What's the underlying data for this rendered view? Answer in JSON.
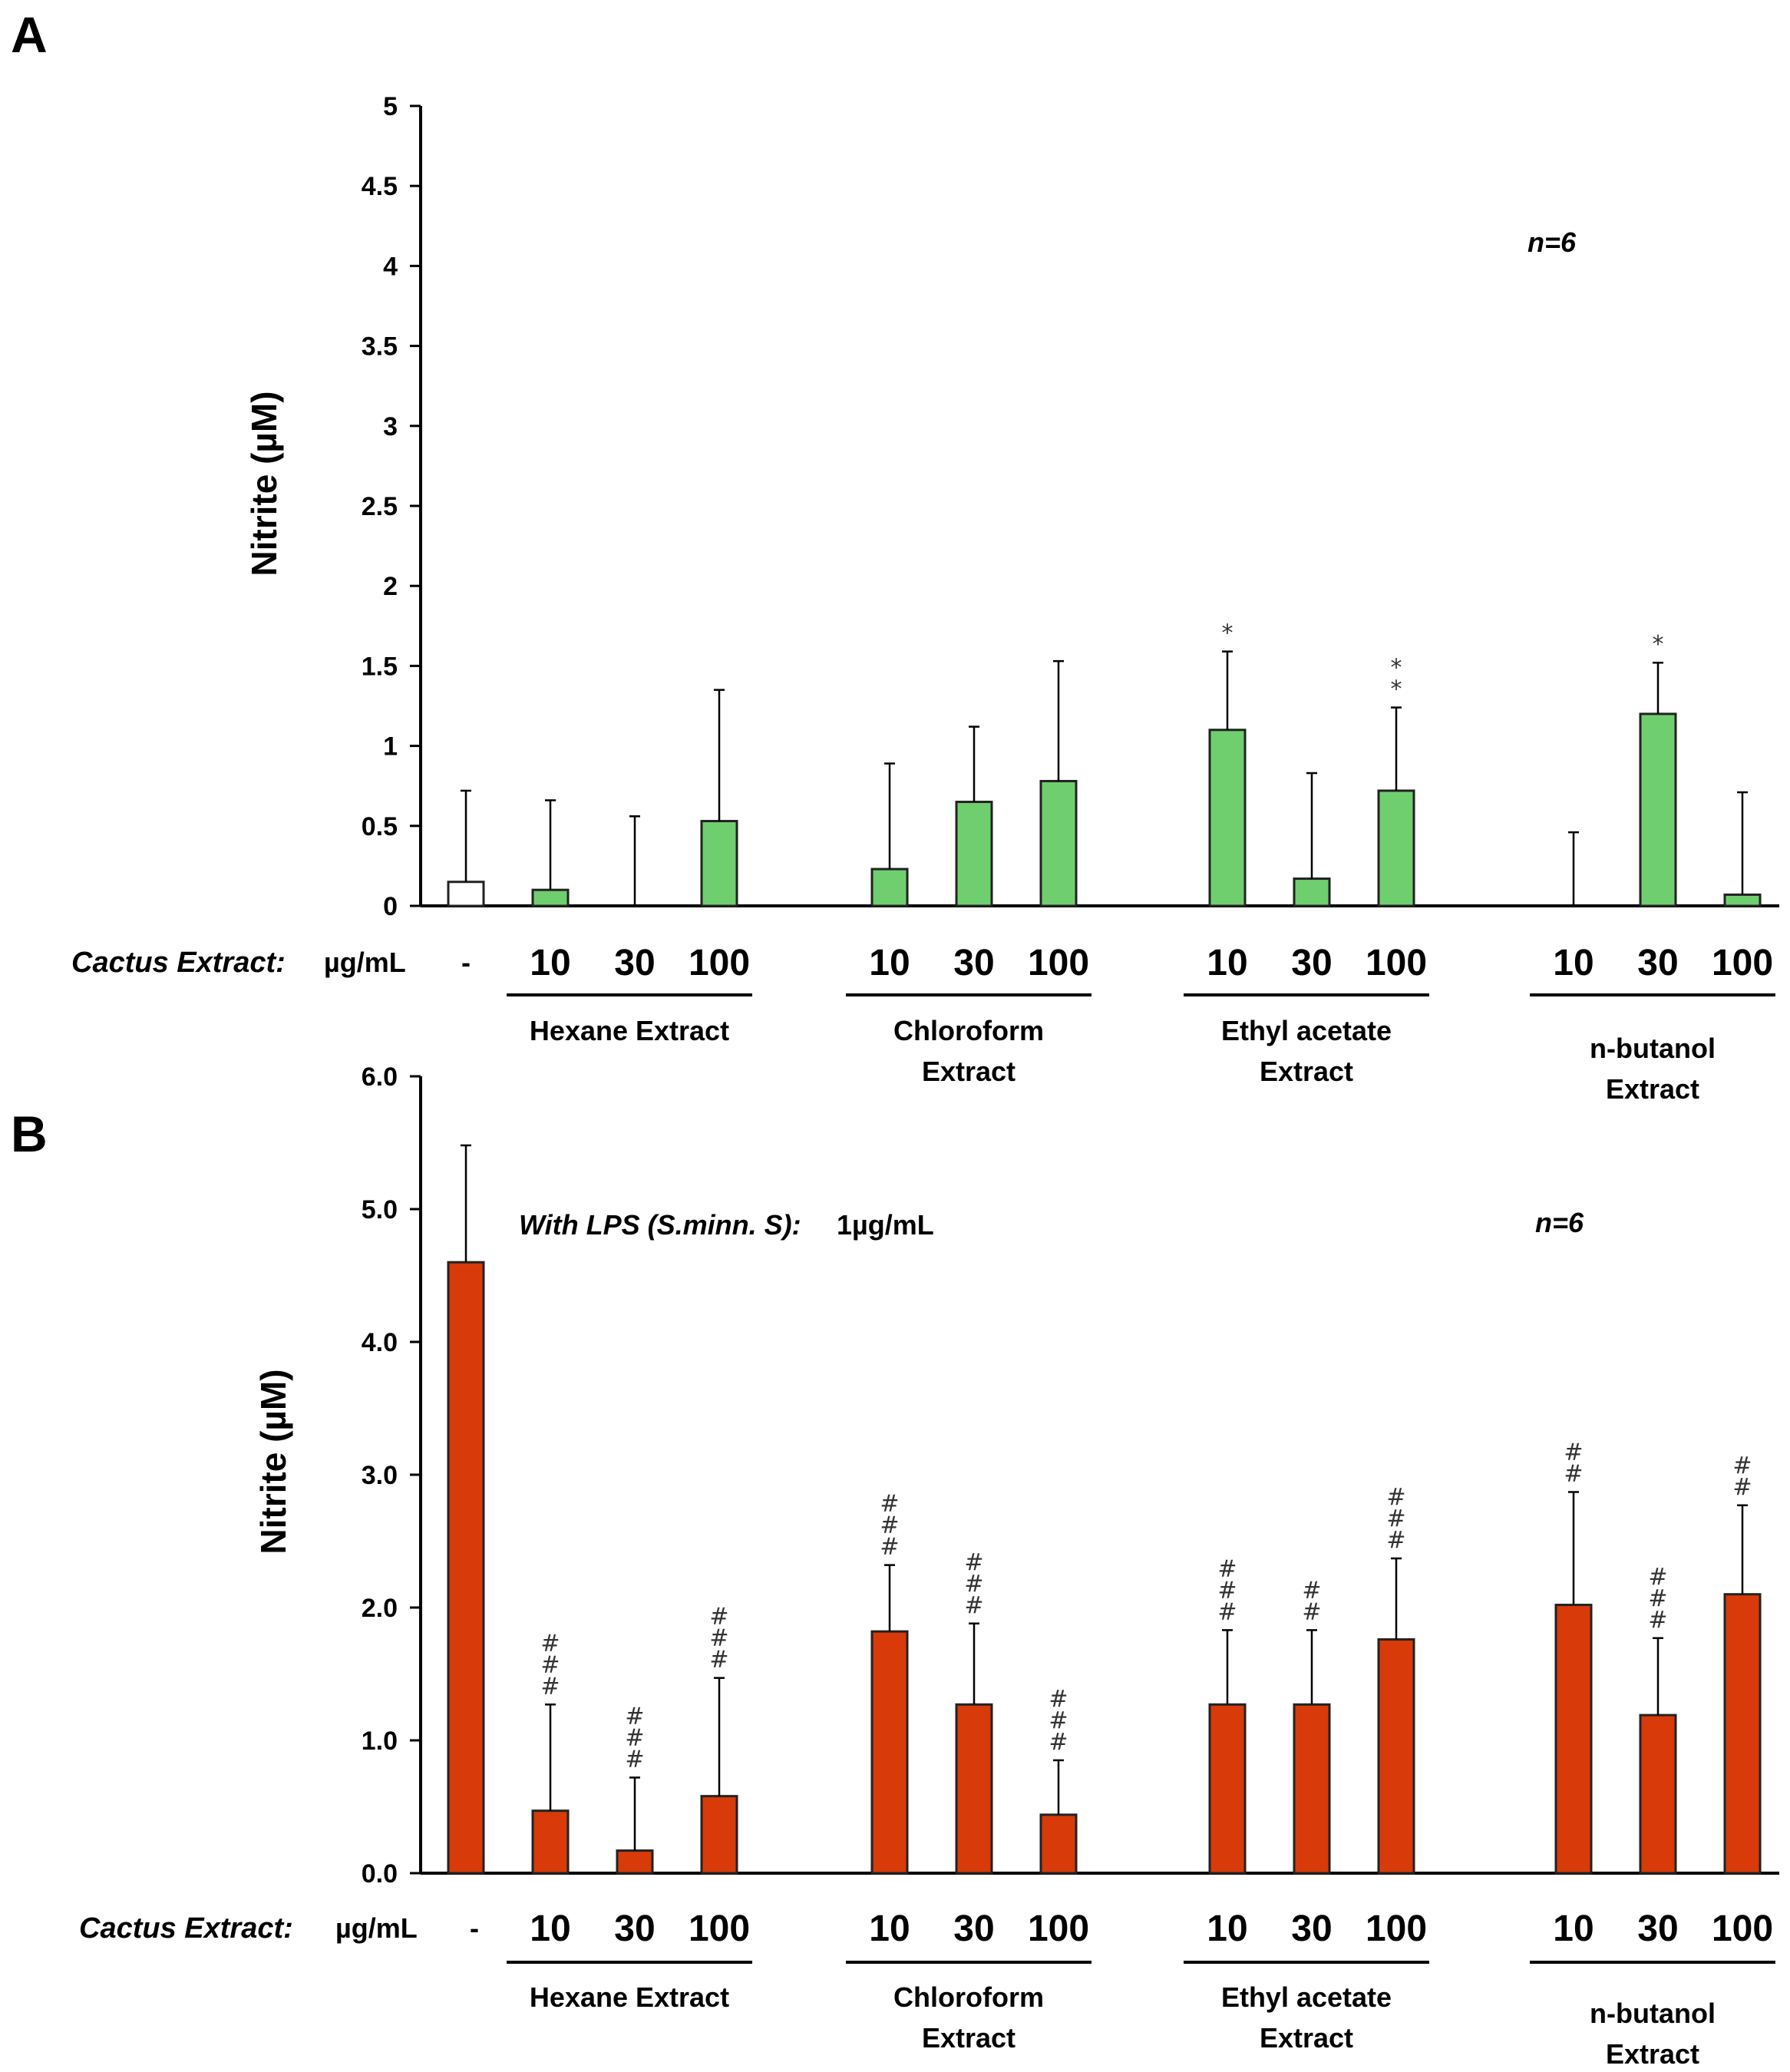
{
  "chart_data": [
    {
      "panel": "A",
      "type": "bar",
      "ylabel": "Nitrite (µM)",
      "ylim": [
        0,
        5
      ],
      "yticks": [
        "0",
        "0.5",
        "1",
        "1.5",
        "2",
        "2.5",
        "3",
        "3.5",
        "4",
        "4.5",
        "5"
      ],
      "n_label": "n=6",
      "row_label": "Cactus Extract:",
      "unit_label": "µg/mL",
      "control_label": "-",
      "bars": [
        {
          "group": "control",
          "dose": "-",
          "value": 0.15,
          "error": 0.57,
          "annotation": "",
          "color": "#ffffff"
        },
        {
          "group": "Hexane Extract",
          "dose": "10",
          "value": 0.1,
          "error": 0.56,
          "annotation": "",
          "color": "#6fcf6f"
        },
        {
          "group": "Hexane Extract",
          "dose": "30",
          "value": 0.0,
          "error": 0.56,
          "annotation": "",
          "color": "#6fcf6f"
        },
        {
          "group": "Hexane Extract",
          "dose": "100",
          "value": 0.53,
          "error": 0.82,
          "annotation": "",
          "color": "#6fcf6f"
        },
        {
          "group": "Chloroform Extract",
          "dose": "10",
          "value": 0.23,
          "error": 0.66,
          "annotation": "",
          "color": "#6fcf6f"
        },
        {
          "group": "Chloroform Extract",
          "dose": "30",
          "value": 0.65,
          "error": 0.47,
          "annotation": "",
          "color": "#6fcf6f"
        },
        {
          "group": "Chloroform Extract",
          "dose": "100",
          "value": 0.78,
          "error": 0.75,
          "annotation": "",
          "color": "#6fcf6f"
        },
        {
          "group": "Ethyl acetate Extract",
          "dose": "10",
          "value": 1.1,
          "error": 0.49,
          "annotation": "*",
          "color": "#6fcf6f"
        },
        {
          "group": "Ethyl acetate Extract",
          "dose": "30",
          "value": 0.17,
          "error": 0.66,
          "annotation": "",
          "color": "#6fcf6f"
        },
        {
          "group": "Ethyl acetate Extract",
          "dose": "100",
          "value": 0.72,
          "error": 0.52,
          "annotation": "**",
          "color": "#6fcf6f"
        },
        {
          "group": "n-butanol Extract",
          "dose": "10",
          "value": 0.0,
          "error": 0.46,
          "annotation": "",
          "color": "#6fcf6f"
        },
        {
          "group": "n-butanol Extract",
          "dose": "30",
          "value": 1.2,
          "error": 0.32,
          "annotation": "*",
          "color": "#6fcf6f"
        },
        {
          "group": "n-butanol Extract",
          "dose": "100",
          "value": 0.07,
          "error": 0.64,
          "annotation": "",
          "color": "#6fcf6f"
        }
      ],
      "groups": [
        {
          "lines": [
            "Hexane Extract"
          ],
          "doses": [
            "10",
            "30",
            "100"
          ]
        },
        {
          "lines": [
            "Chloroform",
            "Extract"
          ],
          "doses": [
            "10",
            "30",
            "100"
          ]
        },
        {
          "lines": [
            "Ethyl acetate",
            "Extract"
          ],
          "doses": [
            "10",
            "30",
            "100"
          ]
        },
        {
          "lines": [
            "n-butanol",
            "Extract"
          ],
          "doses": [
            "10",
            "30",
            "100"
          ]
        }
      ]
    },
    {
      "panel": "B",
      "type": "bar",
      "ylabel": "Nitrite (µM)",
      "ylim": [
        0,
        6
      ],
      "yticks": [
        "0.0",
        "1.0",
        "2.0",
        "3.0",
        "4.0",
        "5.0",
        "6.0"
      ],
      "n_label": "n=6",
      "lps_label": "With LPS (S.minn. S):",
      "lps_value": "1µg/mL",
      "row_label": "Cactus Extract:",
      "unit_label": "µg/mL",
      "control_label": "-",
      "bars": [
        {
          "group": "control",
          "dose": "-",
          "value": 4.6,
          "error": 0.88,
          "annotation": "",
          "color": "#d83a0a"
        },
        {
          "group": "Hexane Extract",
          "dose": "10",
          "value": 0.47,
          "error": 0.8,
          "annotation": "###",
          "color": "#d83a0a"
        },
        {
          "group": "Hexane Extract",
          "dose": "30",
          "value": 0.17,
          "error": 0.55,
          "annotation": "###",
          "color": "#d83a0a"
        },
        {
          "group": "Hexane Extract",
          "dose": "100",
          "value": 0.58,
          "error": 0.89,
          "annotation": "###",
          "color": "#d83a0a"
        },
        {
          "group": "Chloroform Extract",
          "dose": "10",
          "value": 1.82,
          "error": 0.5,
          "annotation": "###",
          "color": "#d83a0a"
        },
        {
          "group": "Chloroform Extract",
          "dose": "30",
          "value": 1.27,
          "error": 0.61,
          "annotation": "###",
          "color": "#d83a0a"
        },
        {
          "group": "Chloroform Extract",
          "dose": "100",
          "value": 0.44,
          "error": 0.41,
          "annotation": "###",
          "color": "#d83a0a"
        },
        {
          "group": "Ethyl acetate Extract",
          "dose": "10",
          "value": 1.27,
          "error": 0.56,
          "annotation": "###",
          "color": "#d83a0a"
        },
        {
          "group": "Ethyl acetate Extract",
          "dose": "30",
          "value": 1.27,
          "error": 0.56,
          "annotation": "##",
          "color": "#d83a0a"
        },
        {
          "group": "Ethyl acetate Extract",
          "dose": "100",
          "value": 1.76,
          "error": 0.61,
          "annotation": "###",
          "color": "#d83a0a"
        },
        {
          "group": "n-butanol Extract",
          "dose": "10",
          "value": 2.02,
          "error": 0.85,
          "annotation": "##",
          "color": "#d83a0a"
        },
        {
          "group": "n-butanol Extract",
          "dose": "30",
          "value": 1.19,
          "error": 0.58,
          "annotation": "###",
          "color": "#d83a0a"
        },
        {
          "group": "n-butanol Extract",
          "dose": "100",
          "value": 2.1,
          "error": 0.67,
          "annotation": "##",
          "color": "#d83a0a"
        }
      ],
      "groups": [
        {
          "lines": [
            "Hexane Extract"
          ],
          "doses": [
            "10",
            "30",
            "100"
          ]
        },
        {
          "lines": [
            "Chloroform",
            "Extract"
          ],
          "doses": [
            "10",
            "30",
            "100"
          ]
        },
        {
          "lines": [
            "Ethyl acetate",
            "Extract"
          ],
          "doses": [
            "10",
            "30",
            "100"
          ]
        },
        {
          "lines": [
            "n-butanol",
            "Extract"
          ],
          "doses": [
            "10",
            "30",
            "100"
          ]
        }
      ]
    }
  ]
}
